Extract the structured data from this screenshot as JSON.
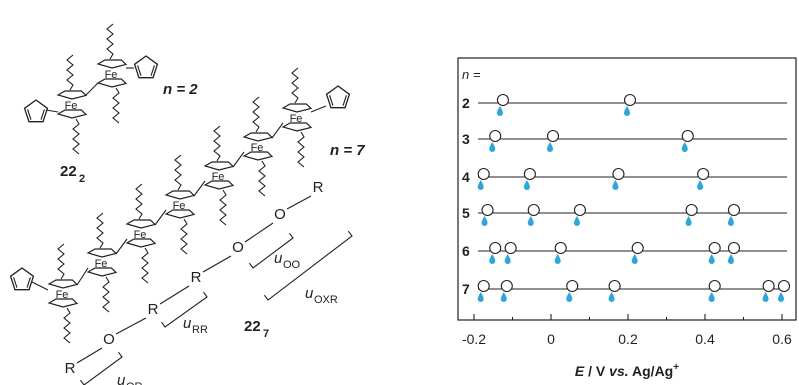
{
  "left_panel": {
    "labels": {
      "n2": "n = 2",
      "n7": "n = 7",
      "c22_2": "22",
      "c22_2_sub": "2",
      "c22_7": "22",
      "c22_7_sub": "7",
      "fe": "Fe",
      "R": "R",
      "O": "O",
      "u": "u",
      "sub_OO": "OO",
      "sub_OXR": "OXR",
      "sub_RR": "RR",
      "sub_OR": "OR"
    }
  },
  "right_panel": {
    "n_label": "n =",
    "rows": [
      {
        "n": "2",
        "peaks": [
          -0.13,
          0.2
        ]
      },
      {
        "n": "3",
        "peaks": [
          -0.15,
          0.0,
          0.35
        ]
      },
      {
        "n": "4",
        "peaks": [
          -0.18,
          -0.06,
          0.17,
          0.39
        ]
      },
      {
        "n": "5",
        "peaks": [
          -0.17,
          -0.05,
          0.07,
          0.36,
          0.47
        ]
      },
      {
        "n": "6",
        "peaks": [
          -0.15,
          -0.11,
          0.02,
          0.22,
          0.42,
          0.47
        ]
      },
      {
        "n": "7",
        "peaks": [
          -0.18,
          -0.12,
          0.05,
          0.16,
          0.42,
          0.56,
          0.6
        ]
      }
    ],
    "x_ticks": [
      "-0.2",
      "0",
      "0.2",
      "0.4",
      "0.6"
    ],
    "x_label_italic": "E",
    "x_label_mid": " / V ",
    "x_label_vs": "vs.",
    "x_label_end": " Ag/Ag",
    "x_label_sup": "+",
    "colors": {
      "marker_blue": "#29a8df",
      "ink": "#231f20"
    }
  }
}
